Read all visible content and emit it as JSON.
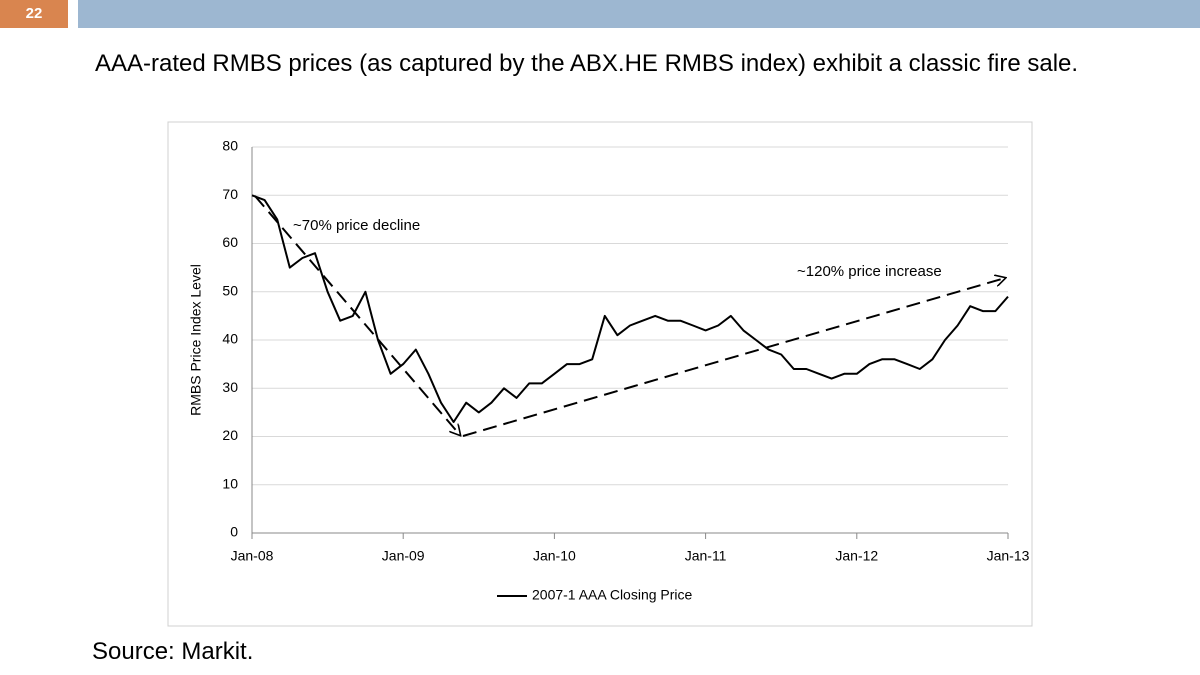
{
  "slide_number": "22",
  "heading": "AAA-rated RMBS prices (as captured by the ABX.HE RMBS index) exhibit a classic fire sale.",
  "source": "Source: Markit.",
  "chart_data": {
    "type": "line",
    "ylabel": "RMBS Price Index Level",
    "annotations": [
      "~70% price decline",
      "~120% price increase"
    ],
    "x": [
      "2008-01",
      "2008-02",
      "2008-03",
      "2008-04",
      "2008-05",
      "2008-06",
      "2008-07",
      "2008-08",
      "2008-09",
      "2008-10",
      "2008-11",
      "2008-12",
      "2009-01",
      "2009-02",
      "2009-03",
      "2009-04",
      "2009-05",
      "2009-06",
      "2009-07",
      "2009-08",
      "2009-09",
      "2009-10",
      "2009-11",
      "2009-12",
      "2010-01",
      "2010-02",
      "2010-03",
      "2010-04",
      "2010-05",
      "2010-06",
      "2010-07",
      "2010-08",
      "2010-09",
      "2010-10",
      "2010-11",
      "2010-12",
      "2011-01",
      "2011-02",
      "2011-03",
      "2011-04",
      "2011-05",
      "2011-06",
      "2011-07",
      "2011-08",
      "2011-09",
      "2011-10",
      "2011-11",
      "2011-12",
      "2012-01",
      "2012-02",
      "2012-03",
      "2012-04",
      "2012-05",
      "2012-06",
      "2012-07",
      "2012-08",
      "2012-09",
      "2012-10",
      "2012-11",
      "2012-12",
      "2013-01"
    ],
    "series": [
      {
        "name": "2007-1 AAA Closing Price",
        "color": "#000000",
        "values": [
          70,
          69,
          65,
          55,
          57,
          58,
          50,
          44,
          45,
          50,
          40,
          33,
          35,
          38,
          33,
          27,
          23,
          27,
          25,
          27,
          30,
          28,
          31,
          31,
          33,
          35,
          35,
          36,
          45,
          41,
          43,
          44,
          45,
          44,
          44,
          43,
          42,
          43,
          45,
          42,
          40,
          38,
          37,
          34,
          34,
          33,
          32,
          33,
          33,
          35,
          36,
          36,
          35,
          34,
          36,
          40,
          43,
          47,
          46,
          46,
          49
        ]
      }
    ],
    "xlim": [
      "2008-01",
      "2013-01"
    ],
    "xticks": [
      {
        "value": "2008-01",
        "label": "Jan-08"
      },
      {
        "value": "2009-01",
        "label": "Jan-09"
      },
      {
        "value": "2010-01",
        "label": "Jan-10"
      },
      {
        "value": "2011-01",
        "label": "Jan-11"
      },
      {
        "value": "2012-01",
        "label": "Jan-12"
      },
      {
        "value": "2013-01",
        "label": "Jan-13"
      }
    ],
    "ylim": [
      0,
      80
    ],
    "yticks": [
      0,
      10,
      20,
      30,
      40,
      50,
      60,
      70,
      80
    ],
    "grid": true,
    "legend": "bottom"
  }
}
